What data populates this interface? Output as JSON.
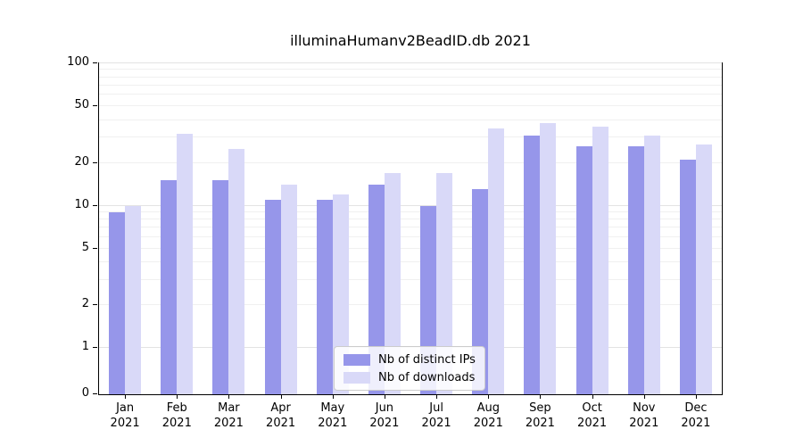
{
  "chart_data": {
    "type": "bar",
    "title": "illuminaHumanv2BeadID.db 2021",
    "categories": [
      "Jan",
      "Feb",
      "Mar",
      "Apr",
      "May",
      "Jun",
      "Jul",
      "Aug",
      "Sep",
      "Oct",
      "Nov",
      "Dec"
    ],
    "year_label": "2021",
    "series": [
      {
        "name": "Nb of distinct IPs",
        "color": "#9696ea",
        "values": [
          9,
          15,
          15,
          11,
          11,
          14,
          10,
          13,
          31,
          26,
          26,
          21
        ]
      },
      {
        "name": "Nb of downloads",
        "color": "#d9d9f8",
        "values": [
          10,
          32,
          25,
          14,
          12,
          17,
          17,
          35,
          38,
          36,
          31,
          27
        ]
      }
    ],
    "yticks": [
      0,
      1,
      2,
      5,
      10,
      20,
      50,
      100
    ],
    "ylim": [
      0,
      100
    ],
    "xlabel": "",
    "ylabel": "",
    "scale": "log-with-zero",
    "grid": "horizontal-minor",
    "legend_position": "bottom-center"
  }
}
